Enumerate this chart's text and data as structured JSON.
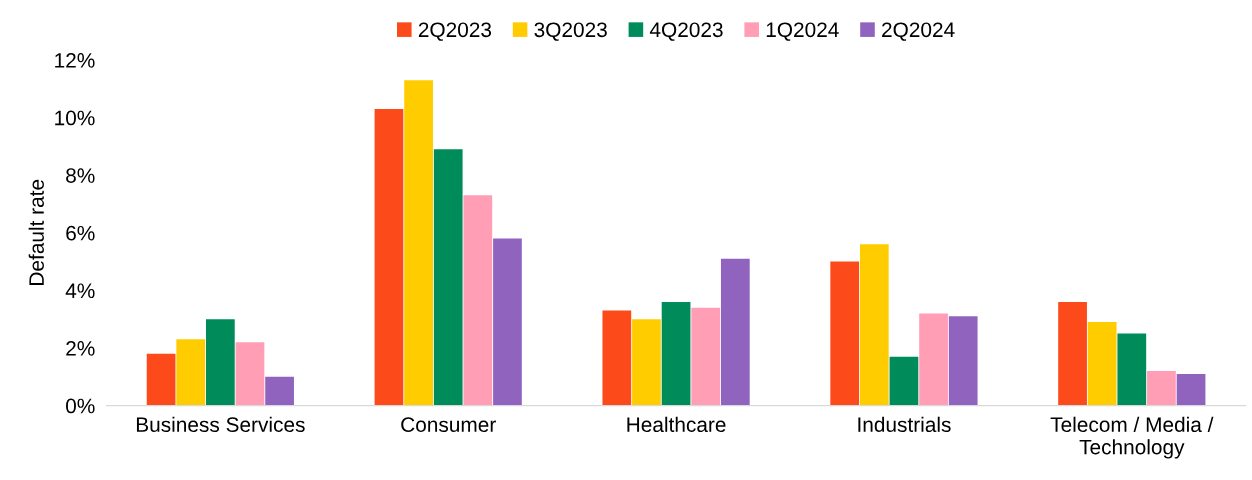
{
  "chart_data": {
    "type": "bar",
    "ylabel": "Default rate",
    "categories": [
      "Business Services",
      "Consumer",
      "Healthcare",
      "Industrials",
      "Telecom / Media /\nTechnology"
    ],
    "series": [
      {
        "name": "2Q2023",
        "color": "#fc4a1a",
        "values": [
          1.8,
          10.3,
          3.3,
          5.0,
          3.6
        ]
      },
      {
        "name": "3Q2023",
        "color": "#ffcc00",
        "values": [
          2.3,
          11.3,
          3.0,
          5.6,
          2.9
        ]
      },
      {
        "name": "4Q2023",
        "color": "#008c5a",
        "values": [
          3.0,
          8.9,
          3.6,
          1.7,
          2.5
        ]
      },
      {
        "name": "1Q2024",
        "color": "#ff9eb5",
        "values": [
          2.2,
          7.3,
          3.4,
          3.2,
          1.2
        ]
      },
      {
        "name": "2Q2024",
        "color": "#9063be",
        "values": [
          1.0,
          5.8,
          5.1,
          3.1,
          1.1
        ]
      }
    ],
    "ylim": [
      0,
      12
    ],
    "yticks": [
      {
        "value": 0,
        "label": "0%"
      },
      {
        "value": 2,
        "label": "2%"
      },
      {
        "value": 4,
        "label": "4%"
      },
      {
        "value": 6,
        "label": "6%"
      },
      {
        "value": 8,
        "label": "8%"
      },
      {
        "value": 10,
        "label": "10%"
      },
      {
        "value": 12,
        "label": "12%"
      }
    ],
    "grid": false,
    "legend": "top"
  }
}
